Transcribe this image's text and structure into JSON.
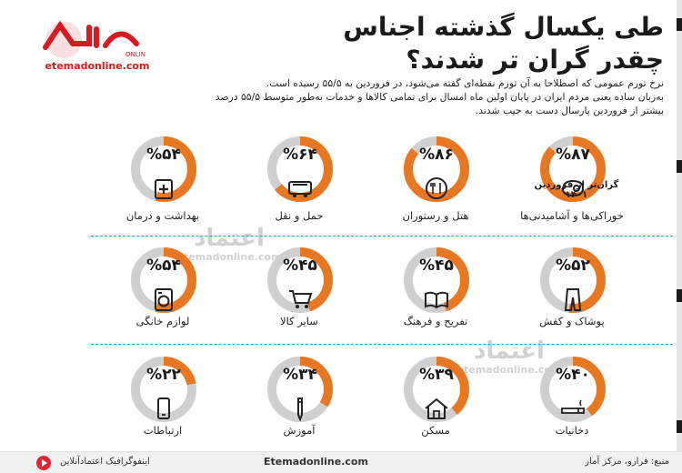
{
  "title": {
    "line1": "طی یکسال گذشته اجناس",
    "line2": "چقدر گران تر شدند؟"
  },
  "logo": {
    "brand": "اعتماد",
    "online": "ONLINE",
    "url": "etemadonline.com"
  },
  "intro": {
    "line1": "نرخ تورم عمومی که اصطلاحا به آن تورم نقطه‌ای گفته می‌شود، در فروردین به ۵۵/۵ رسیده است.",
    "line2": "به‌زبان ساده یعنی مردم ایران در پایان اولین ماه امسال برای تمامی کالاها و خدمات به‌طور متوسط ۵۵/۵ درصد",
    "line3": "بیشتر از فروردین پارسال دست به جیب شدند."
  },
  "subnote": "گران‌تر از فروردین ۱۴۰۱",
  "colors": {
    "accent": "#e87722",
    "track": "#cfcfcf",
    "divider": "#2a9fd8",
    "brand": "#d71920"
  },
  "items": [
    {
      "label": "%۸۷",
      "value": 87,
      "caption": "خوراکی‌ها و آشامیدنی‌ها",
      "icon": "meat-icon"
    },
    {
      "label": "%۸۶",
      "value": 86,
      "caption": "هتل و رستوران",
      "icon": "fork-knife-icon"
    },
    {
      "label": "%۶۴",
      "value": 64,
      "caption": "حمل و نقل",
      "icon": "bus-icon"
    },
    {
      "label": "%۵۴",
      "value": 54,
      "caption": "بهداشت و درمان",
      "icon": "medkit-icon"
    },
    {
      "label": "%۵۲",
      "value": 52,
      "caption": "پوشاک و کفش",
      "icon": "trousers-icon"
    },
    {
      "label": "%۴۵",
      "value": 45,
      "caption": "تفریح و فرهنگ",
      "icon": "book-icon"
    },
    {
      "label": "%۴۵",
      "value": 45,
      "caption": "سایر کالا",
      "icon": "cart-icon"
    },
    {
      "label": "%۵۴",
      "value": 54,
      "caption": "لوازم خانگی",
      "icon": "washing-machine-icon"
    },
    {
      "label": "%۴۰",
      "value": 40,
      "caption": "دخانیات",
      "icon": "cigarette-icon"
    },
    {
      "label": "%۳۹",
      "value": 39,
      "caption": "مسکن",
      "icon": "house-icon"
    },
    {
      "label": "%۳۴",
      "value": 34,
      "caption": "آموزش",
      "icon": "pencil-icon"
    },
    {
      "label": "%۲۲",
      "value": 22,
      "caption": "ارتباطات",
      "icon": "phone-icon"
    }
  ],
  "footer": {
    "source": "منبع: فرارو، مرکز آمار",
    "site": "Etemadonline.com",
    "credit": "اینفوگرافیک اعتمادآنلاین"
  }
}
